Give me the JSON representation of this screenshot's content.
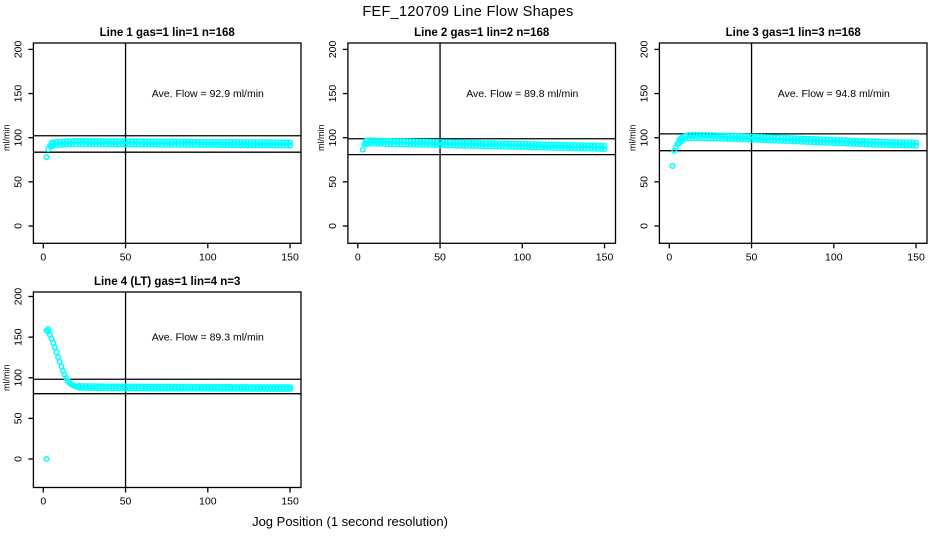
{
  "figure": {
    "title": "FEF_120709  Line Flow Shapes",
    "xlabel": "Jog Position (1 second resolution)",
    "ylabel": "ml/min",
    "background": "#ffffff",
    "point_color": "#00FFFF",
    "line_color": "#000000"
  },
  "chart_data": [
    {
      "type": "scatter",
      "title": "Line 1 gas=1 lin=1 n=168",
      "annotation": "Ave. Flow =  92.9  ml/min",
      "ave_flow": 92.9,
      "n": 168,
      "xlabel": "Jog Position (1 second resolution)",
      "ylabel": "ml/min",
      "xlim": [
        0,
        150
      ],
      "ylim": [
        0,
        200
      ],
      "xticks": [
        0,
        50,
        100,
        150
      ],
      "yticks": [
        0,
        50,
        100,
        150,
        200
      ],
      "ref_vline_x": 50,
      "ref_hlines": [
        102.2,
        83.6
      ],
      "band_from_x": 5,
      "band_spread": 1.8,
      "points": [
        [
          2,
          78
        ],
        [
          3,
          87
        ],
        [
          4,
          90.5
        ],
        [
          5,
          92
        ],
        [
          6,
          92.8
        ],
        [
          8,
          93.3
        ],
        [
          10,
          93.6
        ],
        [
          12,
          93.9
        ],
        [
          14,
          94.1
        ],
        [
          16,
          94.3
        ],
        [
          18,
          94.4
        ],
        [
          20,
          94.5
        ],
        [
          22,
          94.5
        ],
        [
          24,
          94.5
        ],
        [
          26,
          94.5
        ],
        [
          28,
          94.4
        ],
        [
          30,
          94.4
        ],
        [
          32,
          94.4
        ],
        [
          34,
          94.4
        ],
        [
          36,
          94.3
        ],
        [
          38,
          94.3
        ],
        [
          40,
          94.3
        ],
        [
          42,
          94.3
        ],
        [
          44,
          94.2
        ],
        [
          46,
          94.2
        ],
        [
          48,
          94.2
        ],
        [
          50,
          94.2
        ],
        [
          52,
          94.1
        ],
        [
          54,
          94.1
        ],
        [
          56,
          94.1
        ],
        [
          58,
          94.1
        ],
        [
          60,
          94.0
        ],
        [
          62,
          94.0
        ],
        [
          64,
          94.0
        ],
        [
          66,
          94.0
        ],
        [
          68,
          93.9
        ],
        [
          70,
          93.9
        ],
        [
          72,
          93.9
        ],
        [
          74,
          93.9
        ],
        [
          76,
          93.8
        ],
        [
          78,
          93.8
        ],
        [
          80,
          93.8
        ],
        [
          82,
          93.8
        ],
        [
          84,
          93.7
        ],
        [
          86,
          93.7
        ],
        [
          88,
          93.7
        ],
        [
          90,
          93.7
        ],
        [
          92,
          93.6
        ],
        [
          94,
          93.6
        ],
        [
          96,
          93.6
        ],
        [
          98,
          93.6
        ],
        [
          100,
          93.5
        ],
        [
          102,
          93.5
        ],
        [
          104,
          93.5
        ],
        [
          106,
          93.5
        ],
        [
          108,
          93.4
        ],
        [
          110,
          93.4
        ],
        [
          112,
          93.4
        ],
        [
          114,
          93.4
        ],
        [
          116,
          93.3
        ],
        [
          118,
          93.3
        ],
        [
          120,
          93.3
        ],
        [
          122,
          93.3
        ],
        [
          124,
          93.2
        ],
        [
          126,
          93.2
        ],
        [
          128,
          93.2
        ],
        [
          130,
          93.2
        ],
        [
          132,
          93.1
        ],
        [
          134,
          93.1
        ],
        [
          136,
          93.1
        ],
        [
          138,
          93.1
        ],
        [
          140,
          93.0
        ],
        [
          142,
          93.0
        ],
        [
          144,
          93.0
        ],
        [
          146,
          93.0
        ],
        [
          148,
          92.9
        ],
        [
          150,
          92.9
        ]
      ]
    },
    {
      "type": "scatter",
      "title": "Line 2 gas=1 lin=2 n=168",
      "annotation": "Ave. Flow =  89.8  ml/min",
      "ave_flow": 89.8,
      "n": 168,
      "xlabel": "Jog Position (1 second resolution)",
      "ylabel": "ml/min",
      "xlim": [
        0,
        150
      ],
      "ylim": [
        0,
        200
      ],
      "xticks": [
        0,
        50,
        100,
        150
      ],
      "yticks": [
        0,
        50,
        100,
        150,
        200
      ],
      "ref_vline_x": 50,
      "ref_hlines": [
        98.8,
        80.8
      ],
      "band_from_x": 5,
      "band_spread": 1.8,
      "points": [
        [
          3,
          86.5
        ],
        [
          4,
          93
        ],
        [
          5,
          94.5
        ],
        [
          6,
          95
        ],
        [
          8,
          95.2
        ],
        [
          10,
          95.1
        ],
        [
          12,
          95.0
        ],
        [
          14,
          94.9
        ],
        [
          16,
          94.8
        ],
        [
          18,
          94.7
        ],
        [
          20,
          94.6
        ],
        [
          22,
          94.5
        ],
        [
          24,
          94.4
        ],
        [
          26,
          94.4
        ],
        [
          28,
          94.3
        ],
        [
          30,
          94.2
        ],
        [
          32,
          94.1
        ],
        [
          34,
          94.0
        ],
        [
          36,
          93.9
        ],
        [
          38,
          93.8
        ],
        [
          40,
          93.8
        ],
        [
          42,
          93.7
        ],
        [
          44,
          93.6
        ],
        [
          46,
          93.5
        ],
        [
          48,
          93.4
        ],
        [
          50,
          93.3
        ],
        [
          52,
          93.2
        ],
        [
          54,
          93.2
        ],
        [
          56,
          93.1
        ],
        [
          58,
          93.0
        ],
        [
          60,
          92.9
        ],
        [
          62,
          92.8
        ],
        [
          64,
          92.7
        ],
        [
          66,
          92.6
        ],
        [
          68,
          92.6
        ],
        [
          70,
          92.5
        ],
        [
          72,
          92.4
        ],
        [
          74,
          92.3
        ],
        [
          76,
          92.2
        ],
        [
          78,
          92.1
        ],
        [
          80,
          92.0
        ],
        [
          82,
          92.0
        ],
        [
          84,
          91.9
        ],
        [
          86,
          91.8
        ],
        [
          88,
          91.7
        ],
        [
          90,
          91.6
        ],
        [
          92,
          91.5
        ],
        [
          94,
          91.4
        ],
        [
          96,
          91.4
        ],
        [
          98,
          91.3
        ],
        [
          100,
          91.2
        ],
        [
          102,
          91.1
        ],
        [
          104,
          91.0
        ],
        [
          106,
          90.9
        ],
        [
          108,
          90.8
        ],
        [
          110,
          90.8
        ],
        [
          112,
          90.7
        ],
        [
          114,
          90.6
        ],
        [
          116,
          90.5
        ],
        [
          118,
          90.4
        ],
        [
          120,
          90.3
        ],
        [
          122,
          90.2
        ],
        [
          124,
          90.2
        ],
        [
          126,
          90.1
        ],
        [
          128,
          90.0
        ],
        [
          130,
          89.9
        ],
        [
          132,
          89.8
        ],
        [
          134,
          89.7
        ],
        [
          136,
          89.6
        ],
        [
          138,
          89.6
        ],
        [
          140,
          89.5
        ],
        [
          142,
          89.4
        ],
        [
          144,
          89.3
        ],
        [
          146,
          89.2
        ],
        [
          148,
          89.1
        ],
        [
          150,
          89.0
        ]
      ]
    },
    {
      "type": "scatter",
      "title": "Line 3 gas=1 lin=3 n=168",
      "annotation": "Ave. Flow =  94.8  ml/min",
      "ave_flow": 94.8,
      "n": 168,
      "xlabel": "Jog Position (1 second resolution)",
      "ylabel": "ml/min",
      "xlim": [
        0,
        150
      ],
      "ylim": [
        0,
        200
      ],
      "xticks": [
        0,
        50,
        100,
        150
      ],
      "yticks": [
        0,
        50,
        100,
        150,
        200
      ],
      "ref_vline_x": 50,
      "ref_hlines": [
        104.3,
        85.3
      ],
      "band_from_x": 6,
      "band_spread": 1.8,
      "points": [
        [
          2,
          68
        ],
        [
          3,
          85
        ],
        [
          4,
          89
        ],
        [
          5,
          93
        ],
        [
          6,
          95.5
        ],
        [
          7,
          97.5
        ],
        [
          8,
          99
        ],
        [
          10,
          100.5
        ],
        [
          12,
          101.2
        ],
        [
          14,
          101.4
        ],
        [
          16,
          101.5
        ],
        [
          18,
          101.4
        ],
        [
          20,
          101.3
        ],
        [
          22,
          101.2
        ],
        [
          24,
          101.1
        ],
        [
          26,
          101.0
        ],
        [
          28,
          100.9
        ],
        [
          30,
          100.8
        ],
        [
          32,
          100.7
        ],
        [
          34,
          100.5
        ],
        [
          36,
          100.4
        ],
        [
          38,
          100.3
        ],
        [
          40,
          100.2
        ],
        [
          42,
          100.0
        ],
        [
          44,
          99.9
        ],
        [
          46,
          99.8
        ],
        [
          48,
          99.6
        ],
        [
          50,
          99.5
        ],
        [
          52,
          99.4
        ],
        [
          54,
          99.2
        ],
        [
          56,
          99.1
        ],
        [
          58,
          99.0
        ],
        [
          60,
          98.8
        ],
        [
          62,
          98.7
        ],
        [
          64,
          98.5
        ],
        [
          66,
          98.4
        ],
        [
          68,
          98.2
        ],
        [
          70,
          98.1
        ],
        [
          72,
          97.9
        ],
        [
          74,
          97.8
        ],
        [
          76,
          97.6
        ],
        [
          78,
          97.5
        ],
        [
          80,
          97.3
        ],
        [
          82,
          97.2
        ],
        [
          84,
          97.0
        ],
        [
          86,
          96.9
        ],
        [
          88,
          96.7
        ],
        [
          90,
          96.6
        ],
        [
          92,
          96.4
        ],
        [
          94,
          96.3
        ],
        [
          96,
          96.1
        ],
        [
          98,
          96.0
        ],
        [
          100,
          95.8
        ],
        [
          102,
          95.7
        ],
        [
          104,
          95.5
        ],
        [
          106,
          95.4
        ],
        [
          108,
          95.2
        ],
        [
          110,
          95.1
        ],
        [
          112,
          94.9
        ],
        [
          114,
          94.8
        ],
        [
          116,
          94.6
        ],
        [
          118,
          94.5
        ],
        [
          120,
          94.3
        ],
        [
          122,
          94.2
        ],
        [
          124,
          94.0
        ],
        [
          126,
          93.9
        ],
        [
          128,
          93.8
        ],
        [
          130,
          93.6
        ],
        [
          132,
          93.5
        ],
        [
          134,
          93.4
        ],
        [
          136,
          93.3
        ],
        [
          138,
          93.2
        ],
        [
          140,
          93.1
        ],
        [
          142,
          93.0
        ],
        [
          144,
          92.9
        ],
        [
          146,
          92.8
        ],
        [
          148,
          92.7
        ],
        [
          150,
          92.6
        ]
      ]
    },
    {
      "type": "scatter",
      "title": "Line 4 (LT) gas=1 lin=4 n=3",
      "annotation": "Ave. Flow =  89.3  ml/min",
      "ave_flow": 89.3,
      "n": 3,
      "xlabel": "Jog Position (1 second resolution)",
      "ylabel": "ml/min",
      "xlim": [
        0,
        150
      ],
      "ylim": [
        0,
        200
      ],
      "xticks": [
        0,
        50,
        100,
        150
      ],
      "yticks": [
        0,
        50,
        100,
        150,
        200
      ],
      "ref_vline_x": 50,
      "ref_hlines": [
        98.2,
        80.4
      ],
      "band_from_x": 22,
      "band_spread": 1.2,
      "points": [
        [
          2,
          0
        ],
        [
          2,
          158
        ],
        [
          3,
          160
        ],
        [
          3,
          157
        ],
        [
          4,
          153
        ],
        [
          5,
          148
        ],
        [
          6,
          143
        ],
        [
          7,
          137.5
        ],
        [
          8,
          131.5
        ],
        [
          9,
          125.5
        ],
        [
          10,
          119.5
        ],
        [
          11,
          114
        ],
        [
          12,
          108.5
        ],
        [
          13,
          103.5
        ],
        [
          14,
          99.5
        ],
        [
          15,
          96
        ],
        [
          16,
          93.5
        ],
        [
          17,
          92
        ],
        [
          18,
          90.8
        ],
        [
          19,
          90
        ],
        [
          20,
          89.4
        ],
        [
          21,
          89
        ],
        [
          22,
          88.8
        ],
        [
          24,
          88.6
        ],
        [
          26,
          88.5
        ],
        [
          28,
          88.4
        ],
        [
          30,
          88.4
        ],
        [
          32,
          88.3
        ],
        [
          34,
          88.3
        ],
        [
          36,
          88.3
        ],
        [
          38,
          88.2
        ],
        [
          40,
          88.2
        ],
        [
          42,
          88.2
        ],
        [
          44,
          88.2
        ],
        [
          46,
          88.1
        ],
        [
          48,
          88.1
        ],
        [
          50,
          88.1
        ],
        [
          52,
          88.1
        ],
        [
          54,
          88.1
        ],
        [
          56,
          88.0
        ],
        [
          58,
          88.0
        ],
        [
          60,
          88.0
        ],
        [
          62,
          88.0
        ],
        [
          64,
          88.0
        ],
        [
          66,
          87.9
        ],
        [
          68,
          87.9
        ],
        [
          70,
          87.9
        ],
        [
          72,
          87.9
        ],
        [
          74,
          87.9
        ],
        [
          76,
          87.8
        ],
        [
          78,
          87.8
        ],
        [
          80,
          87.8
        ],
        [
          82,
          87.8
        ],
        [
          84,
          87.8
        ],
        [
          86,
          87.8
        ],
        [
          88,
          87.7
        ],
        [
          90,
          87.7
        ],
        [
          92,
          87.7
        ],
        [
          94,
          87.7
        ],
        [
          96,
          87.7
        ],
        [
          98,
          87.7
        ],
        [
          100,
          87.6
        ],
        [
          102,
          87.6
        ],
        [
          104,
          87.6
        ],
        [
          106,
          87.6
        ],
        [
          108,
          87.6
        ],
        [
          110,
          87.6
        ],
        [
          112,
          87.5
        ],
        [
          114,
          87.5
        ],
        [
          116,
          87.5
        ],
        [
          118,
          87.5
        ],
        [
          120,
          87.5
        ],
        [
          122,
          87.5
        ],
        [
          124,
          87.4
        ],
        [
          126,
          87.4
        ],
        [
          128,
          87.4
        ],
        [
          130,
          87.4
        ],
        [
          132,
          87.4
        ],
        [
          134,
          87.4
        ],
        [
          136,
          87.3
        ],
        [
          138,
          87.3
        ],
        [
          140,
          87.3
        ],
        [
          142,
          87.3
        ],
        [
          144,
          87.3
        ],
        [
          146,
          87.3
        ],
        [
          148,
          87.2
        ],
        [
          150,
          87.2
        ]
      ]
    }
  ]
}
